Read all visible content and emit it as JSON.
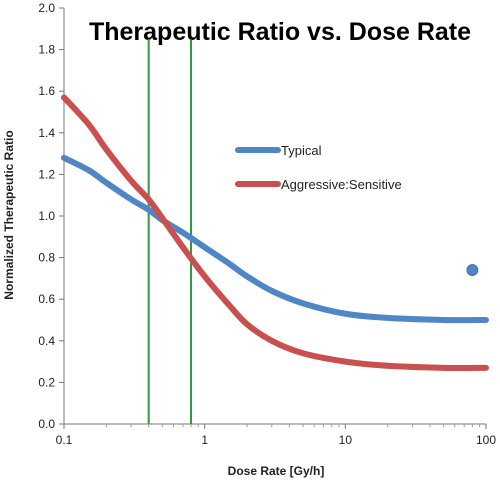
{
  "chart_data": {
    "type": "line",
    "title": "Therapeutic Ratio vs. Dose Rate",
    "xlabel": "Dose Rate [Gy/h]",
    "ylabel": "Normalized Therapeutic Ratio",
    "x_scale": "log",
    "xlim": [
      0.1,
      100
    ],
    "ylim": [
      0.0,
      2.0
    ],
    "x_ticks": [
      0.1,
      1,
      10,
      100
    ],
    "x_tick_labels": [
      "0.1",
      "1",
      "10",
      "100"
    ],
    "y_ticks": [
      0.0,
      0.2,
      0.4,
      0.6,
      0.8,
      1.0,
      1.2,
      1.4,
      1.6,
      1.8,
      2.0
    ],
    "y_tick_labels": [
      "0.0",
      "0.2",
      "0.4",
      "0.6",
      "0.8",
      "1.0",
      "1.2",
      "1.4",
      "1.6",
      "1.8",
      "2.0"
    ],
    "grid": false,
    "legend_position": "center-right",
    "series": [
      {
        "name": "Typical",
        "color": "#4f86c6",
        "x": [
          0.1,
          0.15,
          0.2,
          0.3,
          0.4,
          0.5,
          0.7,
          1,
          1.5,
          2,
          3,
          5,
          10,
          20,
          50,
          100
        ],
        "y": [
          1.28,
          1.22,
          1.16,
          1.08,
          1.03,
          0.98,
          0.92,
          0.85,
          0.77,
          0.71,
          0.64,
          0.58,
          0.53,
          0.51,
          0.5,
          0.5
        ]
      },
      {
        "name": "Aggressive:Sensitive",
        "color": "#c9504f",
        "x": [
          0.1,
          0.15,
          0.2,
          0.3,
          0.4,
          0.5,
          0.7,
          1,
          1.5,
          2,
          3,
          5,
          10,
          20,
          50,
          100
        ],
        "y": [
          1.57,
          1.44,
          1.32,
          1.17,
          1.08,
          0.99,
          0.85,
          0.71,
          0.57,
          0.48,
          0.4,
          0.34,
          0.3,
          0.28,
          0.27,
          0.27
        ]
      }
    ],
    "reference_lines": [
      {
        "type": "vertical",
        "x": 0.4,
        "color": "#2e9a3e"
      },
      {
        "type": "vertical",
        "x": 0.8,
        "color": "#2e9a3e"
      }
    ],
    "markers": [
      {
        "x": 80,
        "y": 0.74,
        "color": "#4f86c6"
      }
    ]
  }
}
